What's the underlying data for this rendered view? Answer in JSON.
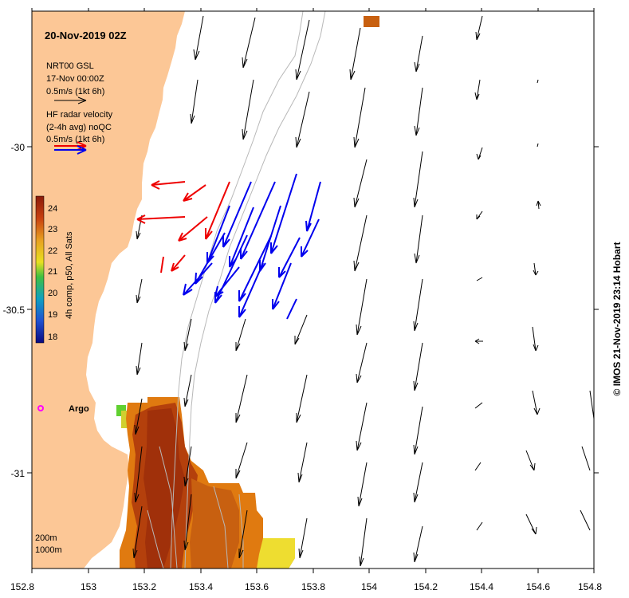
{
  "map": {
    "title": "20-Nov-2019 02Z",
    "model_name": "NRT00 GSL",
    "model_time": "17-Nov 00:00Z",
    "model_scale": "0.5m/s (1kt 6h)",
    "radar_line1": "HF radar velocity",
    "radar_line2": "(2-4h avg) noQC",
    "radar_scale": "0.5m/s (1kt 6h)",
    "argo_label": "Argo",
    "depth_200": "200m",
    "depth_1000": "1000m",
    "credit": "© IMOS 21-Nov-2019 23:14 Hobart"
  },
  "colorbar": {
    "label": "4h comp, p50, All Sats",
    "ticks": [
      "24",
      "23",
      "22",
      "21",
      "20",
      "19",
      "18"
    ]
  },
  "axes": {
    "x_ticks": [
      "152.8",
      "153",
      "153.2",
      "153.4",
      "153.6",
      "153.8",
      "154",
      "154.2",
      "154.4",
      "154.6",
      "154.8"
    ],
    "y_ticks": [
      "-30",
      "-30.5",
      "-31"
    ]
  },
  "colors": {
    "land": "#fcc796",
    "model_arrow": "#000000",
    "radar_offshore": "#0000ee",
    "radar_nearshore": "#ee0000",
    "argo": "#ff00ff"
  }
}
